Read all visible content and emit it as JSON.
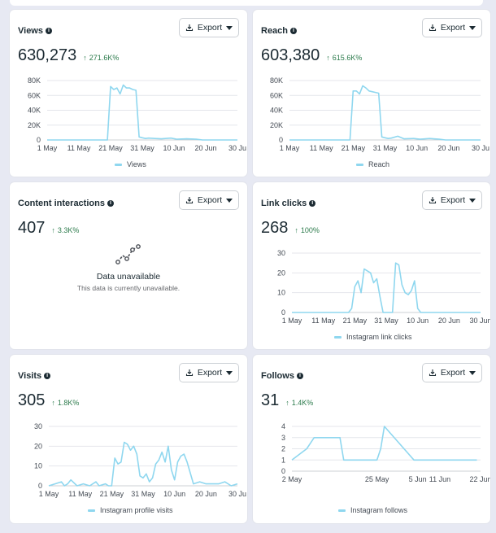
{
  "cards": {
    "views": {
      "title": "Views",
      "export_label": "Export",
      "value": "630,273",
      "delta": "271.6K%",
      "legend": "Views"
    },
    "reach": {
      "title": "Reach",
      "export_label": "Export",
      "value": "603,380",
      "delta": "615.6K%",
      "legend": "Reach"
    },
    "interactions": {
      "title": "Content interactions",
      "export_label": "Export",
      "value": "407",
      "delta": "3.3K%",
      "unavailable_title": "Data unavailable",
      "unavailable_text": "This data is currently unavailable."
    },
    "links": {
      "title": "Link clicks",
      "export_label": "Export",
      "value": "268",
      "delta": "100%",
      "legend": "Instagram link clicks"
    },
    "visits": {
      "title": "Visits",
      "export_label": "Export",
      "value": "305",
      "delta": "1.8K%",
      "legend": "Instagram profile visits"
    },
    "follows": {
      "title": "Follows",
      "export_label": "Export",
      "value": "31",
      "delta": "1.4K%",
      "legend": "Instagram follows"
    }
  },
  "colors": {
    "line": "#8fd7ef",
    "positive": "#2b7a4b",
    "grid": "#e4e6eb"
  },
  "chart_data": [
    {
      "id": "views",
      "type": "line",
      "title": "Views",
      "x": [
        1,
        10,
        20,
        21,
        22,
        23,
        24,
        25,
        26,
        27,
        28,
        29,
        30,
        31,
        32,
        33,
        35,
        37,
        40,
        42,
        45,
        48,
        50,
        55,
        60,
        61
      ],
      "x_ticks": [
        "1 May",
        "11 May",
        "21 May",
        "31 May",
        "10 Jun",
        "20 Jun",
        "30 Ju"
      ],
      "y_ticks": [
        "0",
        "20K",
        "40K",
        "60K",
        "80K"
      ],
      "ylim": [
        0,
        80000
      ],
      "series": [
        {
          "name": "Views",
          "values": [
            0,
            0,
            0,
            72000,
            68000,
            70000,
            62000,
            74000,
            70000,
            70000,
            68000,
            67000,
            4000,
            3000,
            2000,
            2500,
            2000,
            1500,
            2500,
            1000,
            1500,
            1000,
            0,
            0,
            0,
            0
          ]
        }
      ]
    },
    {
      "id": "reach",
      "type": "line",
      "title": "Reach",
      "x": [
        1,
        10,
        20,
        21,
        22,
        23,
        24,
        25,
        26,
        27,
        28,
        29,
        30,
        31,
        32,
        33,
        35,
        37,
        40,
        42,
        45,
        48,
        50,
        55,
        60,
        61
      ],
      "x_ticks": [
        "1 May",
        "11 May",
        "21 May",
        "31 May",
        "10 Jun",
        "20 Jun",
        "30 Ju"
      ],
      "y_ticks": [
        "0",
        "20K",
        "40K",
        "60K",
        "80K"
      ],
      "ylim": [
        0,
        80000
      ],
      "series": [
        {
          "name": "Reach",
          "values": [
            0,
            0,
            0,
            66000,
            66000,
            62000,
            73000,
            70000,
            66000,
            65000,
            64000,
            63000,
            4000,
            3000,
            2000,
            2500,
            5000,
            1500,
            2000,
            1000,
            2000,
            1000,
            0,
            0,
            0,
            0
          ]
        }
      ]
    },
    {
      "id": "links",
      "type": "line",
      "title": "Link clicks",
      "x": [
        1,
        19,
        20,
        21,
        22,
        23,
        24,
        25,
        26,
        27,
        28,
        29,
        30,
        31,
        32,
        33,
        34,
        35,
        36,
        37,
        38,
        39,
        40,
        41,
        42,
        50,
        61
      ],
      "x_ticks": [
        "1 May",
        "11 May",
        "21 May",
        "31 May",
        "10 Jun",
        "20 Jun",
        "30 Jun"
      ],
      "y_ticks": [
        "0",
        "10",
        "20",
        "30"
      ],
      "ylim": [
        0,
        30
      ],
      "series": [
        {
          "name": "Instagram link clicks",
          "values": [
            0,
            0,
            2,
            13,
            16,
            10,
            22,
            21,
            20,
            15,
            17,
            8,
            0,
            0,
            0,
            0,
            25,
            24,
            14,
            10,
            9,
            11,
            16,
            2,
            0,
            0,
            0
          ]
        }
      ]
    },
    {
      "id": "visits",
      "type": "line",
      "title": "Visits",
      "x": [
        1,
        3,
        5,
        6,
        7,
        8,
        10,
        12,
        14,
        16,
        17,
        19,
        20,
        21,
        22,
        23,
        24,
        25,
        26,
        27,
        28,
        29,
        30,
        31,
        32,
        33,
        34,
        35,
        36,
        37,
        38,
        39,
        40,
        41,
        42,
        43,
        44,
        45,
        47,
        49,
        51,
        53,
        55,
        57,
        59,
        61
      ],
      "x_ticks": [
        "1 May",
        "11 May",
        "21 May",
        "31 May",
        "10 Jun",
        "20 Jun",
        "30 Ju"
      ],
      "y_ticks": [
        "0",
        "10",
        "20",
        "30"
      ],
      "ylim": [
        0,
        30
      ],
      "series": [
        {
          "name": "Instagram profile visits",
          "values": [
            0,
            1,
            2,
            0,
            1,
            3,
            0,
            1,
            0,
            2,
            0,
            1,
            0,
            0,
            14,
            11,
            12,
            22,
            21,
            18,
            20,
            16,
            5,
            4,
            6,
            2,
            4,
            11,
            13,
            17,
            12,
            20,
            8,
            3,
            12,
            15,
            16,
            12,
            1,
            2,
            1,
            1,
            1,
            2,
            0,
            1
          ]
        }
      ]
    },
    {
      "id": "follows",
      "type": "line",
      "title": "Follows",
      "x": [
        2,
        6,
        8,
        9,
        15,
        16,
        22,
        23,
        24,
        25,
        26,
        27,
        35,
        40,
        52
      ],
      "x_ticks": [
        "2 May",
        "25 May",
        "5 Jun",
        "11 Jun",
        "22 Jun"
      ],
      "y_ticks": [
        "0",
        "1",
        "2",
        "3",
        "4"
      ],
      "ylim": [
        0,
        4
      ],
      "series": [
        {
          "name": "Instagram follows",
          "values": [
            1,
            2,
            3,
            3,
            3,
            1,
            1,
            1,
            1,
            1,
            2,
            4,
            1,
            1,
            1
          ]
        }
      ]
    }
  ]
}
